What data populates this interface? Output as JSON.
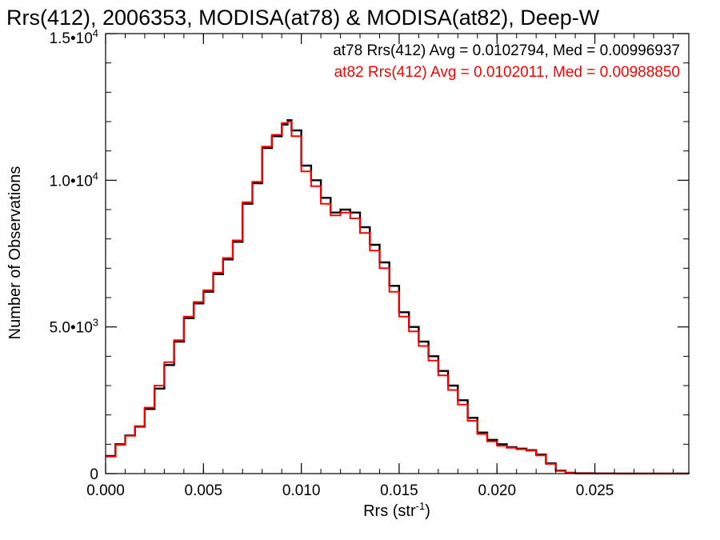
{
  "chart_data": {
    "type": "line",
    "step": true,
    "title": "Rrs(412), 2006353, MODISA(at78) & MODISA(at82), Deep-W",
    "xlabel_main": "Rrs (str",
    "xlabel_sup": "-1",
    "xlabel_end": ")",
    "ylabel": "Number of Observations",
    "xlim": [
      0,
      0.0298
    ],
    "ylim": [
      0,
      15000
    ],
    "xticks": [
      {
        "value": 0.0,
        "label": "0.000"
      },
      {
        "value": 0.005,
        "label": "0.005"
      },
      {
        "value": 0.01,
        "label": "0.010"
      },
      {
        "value": 0.015,
        "label": "0.015"
      },
      {
        "value": 0.02,
        "label": "0.020"
      },
      {
        "value": 0.025,
        "label": "0.025"
      }
    ],
    "yticks": [
      {
        "value": 0,
        "base": "0",
        "sup": ""
      },
      {
        "value": 5000,
        "base": "5.0•10",
        "sup": "3"
      },
      {
        "value": 10000,
        "base": "1.0•10",
        "sup": "4"
      },
      {
        "value": 15000,
        "base": "1.5•10",
        "sup": "4"
      }
    ],
    "grid": false,
    "legend": [
      {
        "text": "at78 Rrs(412) Avg = 0.0102794, Med = 0.00996937",
        "color": "#000000"
      },
      {
        "text": "at82 Rrs(412) Avg = 0.0102011, Med = 0.00988850",
        "color": "#ff0000"
      }
    ],
    "series": [
      {
        "color": "#000000",
        "x": [
          0.0,
          0.0005,
          0.001,
          0.0015,
          0.002,
          0.0025,
          0.003,
          0.0035,
          0.004,
          0.0045,
          0.005,
          0.0055,
          0.006,
          0.0065,
          0.007,
          0.0075,
          0.008,
          0.0085,
          0.009,
          0.0093,
          0.0095,
          0.01,
          0.0105,
          0.011,
          0.0115,
          0.012,
          0.0125,
          0.013,
          0.0135,
          0.014,
          0.0145,
          0.015,
          0.0155,
          0.016,
          0.0165,
          0.017,
          0.0175,
          0.018,
          0.0185,
          0.019,
          0.0195,
          0.02,
          0.0205,
          0.021,
          0.0215,
          0.022,
          0.0225,
          0.023,
          0.0235,
          0.024,
          0.025,
          0.026,
          0.027,
          0.0298
        ],
        "y": [
          600,
          1000,
          1300,
          1600,
          2200,
          2900,
          3700,
          4500,
          5300,
          5800,
          6200,
          6800,
          7300,
          7900,
          9200,
          9900,
          11100,
          11500,
          11900,
          12050,
          11700,
          10500,
          10000,
          9400,
          8900,
          9000,
          8900,
          8400,
          7800,
          7200,
          6400,
          5500,
          5000,
          4500,
          4000,
          3500,
          3000,
          2500,
          1900,
          1400,
          1150,
          1000,
          900,
          850,
          800,
          650,
          350,
          100,
          30,
          10,
          5,
          3,
          2,
          0
        ]
      },
      {
        "color": "#ff0000",
        "x": [
          0.0,
          0.0005,
          0.001,
          0.0015,
          0.002,
          0.0025,
          0.003,
          0.0035,
          0.004,
          0.0045,
          0.005,
          0.0055,
          0.006,
          0.0065,
          0.007,
          0.0075,
          0.008,
          0.0085,
          0.009,
          0.0093,
          0.0095,
          0.01,
          0.0105,
          0.011,
          0.0115,
          0.012,
          0.0125,
          0.013,
          0.0135,
          0.014,
          0.0145,
          0.015,
          0.0155,
          0.016,
          0.0165,
          0.017,
          0.0175,
          0.018,
          0.0185,
          0.019,
          0.0195,
          0.02,
          0.0205,
          0.021,
          0.0215,
          0.022,
          0.0225,
          0.023,
          0.0235,
          0.024,
          0.025,
          0.026,
          0.027,
          0.0298
        ],
        "y": [
          580,
          980,
          1290,
          1620,
          2250,
          3000,
          3800,
          4550,
          5350,
          5850,
          6250,
          6850,
          7350,
          7950,
          9250,
          9950,
          11150,
          11550,
          11950,
          12000,
          11500,
          10300,
          9800,
          9200,
          8800,
          8900,
          8700,
          8200,
          7600,
          7000,
          6200,
          5350,
          4850,
          4350,
          3850,
          3350,
          2850,
          2350,
          1800,
          1350,
          1100,
          950,
          880,
          830,
          780,
          620,
          330,
          90,
          25,
          8,
          4,
          2,
          1,
          0
        ]
      }
    ]
  }
}
